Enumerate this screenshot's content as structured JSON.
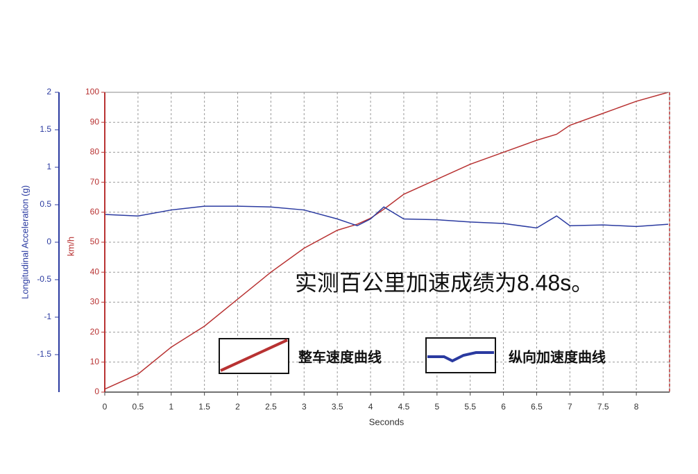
{
  "chart_data": {
    "type": "line",
    "annotation": "实测百公里加速成绩为8.48s。",
    "xlabel": "Seconds",
    "ylabel": "Longitudinal Acceleration (g)",
    "y2label": "km/h",
    "x": [
      0,
      0.5,
      1,
      1.5,
      2,
      2.5,
      3,
      3.5,
      3.8,
      4,
      4.2,
      4.5,
      5,
      5.5,
      6,
      6.5,
      6.8,
      7,
      7.5,
      8,
      8.48
    ],
    "series": [
      {
        "name": "整车速度曲线",
        "color": "#b83232",
        "axis": "y2",
        "values": [
          1,
          6,
          15,
          22,
          31,
          40,
          48,
          54,
          56,
          58,
          61,
          66,
          71,
          76,
          80,
          84,
          86,
          89,
          93,
          97,
          100
        ]
      },
      {
        "name": "纵向加速度曲线",
        "color": "#2a3aa0",
        "values": [
          0.37,
          0.35,
          0.43,
          0.48,
          0.48,
          0.47,
          0.43,
          0.31,
          0.22,
          0.31,
          0.47,
          0.31,
          0.3,
          0.27,
          0.25,
          0.19,
          0.35,
          0.22,
          0.23,
          0.21,
          0.24
        ]
      }
    ],
    "xlim": [
      0,
      8.5
    ],
    "xticks": [
      0,
      0.5,
      1,
      1.5,
      2,
      2.5,
      3,
      3.5,
      4,
      4.5,
      5,
      5.5,
      6,
      6.5,
      7,
      7.5,
      8
    ],
    "ylim": [
      -2,
      2
    ],
    "yticks": [
      -1.5,
      -1,
      -0.5,
      0,
      0.5,
      1,
      1.5,
      2
    ],
    "y2lim": [
      0,
      100
    ],
    "y2ticks": [
      0,
      10,
      20,
      30,
      40,
      50,
      60,
      70,
      80,
      90,
      100
    ],
    "grid": true
  }
}
